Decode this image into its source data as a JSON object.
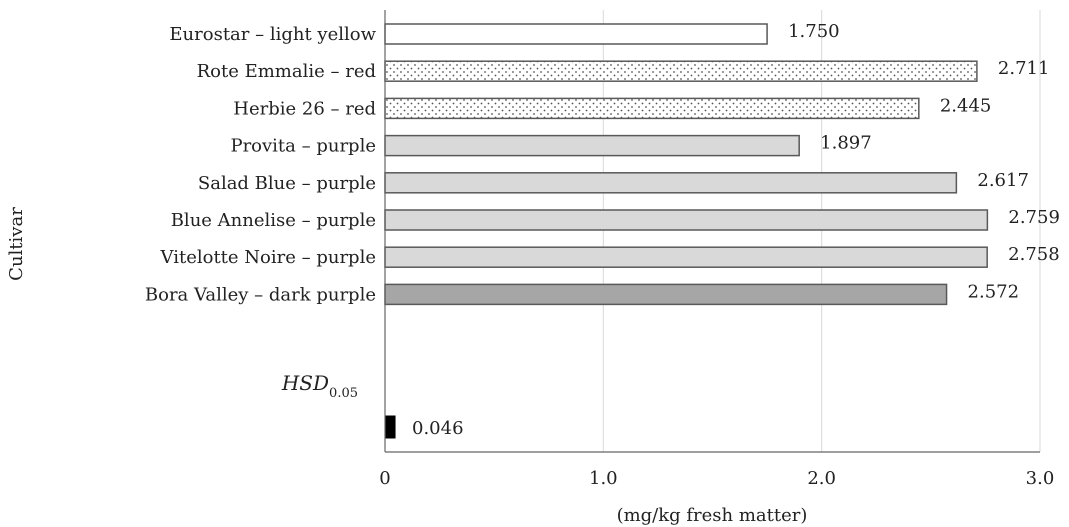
{
  "chart_data": {
    "type": "bar",
    "orientation": "horizontal",
    "categories": [
      "Eurostar – light yellow",
      "Rote Emmalie – red",
      "Herbie 26 – red",
      "Provita – purple",
      "Salad Blue – purple",
      "Blue Annelise – purple",
      "Vitelotte Noire – purple",
      "Bora Valley – dark purple"
    ],
    "values": [
      1.75,
      2.711,
      2.445,
      1.897,
      2.617,
      2.759,
      2.758,
      2.572
    ],
    "value_labels": [
      "1.750",
      "2.711",
      "2.445",
      "1.897",
      "2.617",
      "2.759",
      "2.758",
      "2.572"
    ],
    "fills": [
      "white",
      "dotted",
      "dotted",
      "light-gray",
      "light-gray",
      "light-gray",
      "light-gray",
      "dark-gray"
    ],
    "colors": {
      "white": "#ffffff",
      "dotted_bg": "#ffffff",
      "dotted_dot": "#555555",
      "light-gray": "#d9d9d9",
      "dark-gray": "#a6a6a6",
      "hsd": "#000000",
      "bar_border": "#595959",
      "grid": "#d9d9d9"
    },
    "hsd": {
      "label_main": "HSD",
      "label_sub": "0.05",
      "value": 0.046,
      "value_label": "0.046"
    },
    "xlabel": "(mg/kg fresh matter)",
    "ylabel": "Cultivar",
    "xlim": [
      0,
      3.0
    ],
    "xticks": [
      0,
      1.0,
      2.0,
      3.0
    ],
    "xtick_labels": [
      "0",
      "1.0",
      "2.0",
      "3.0"
    ],
    "grid": true,
    "legend": "none"
  }
}
